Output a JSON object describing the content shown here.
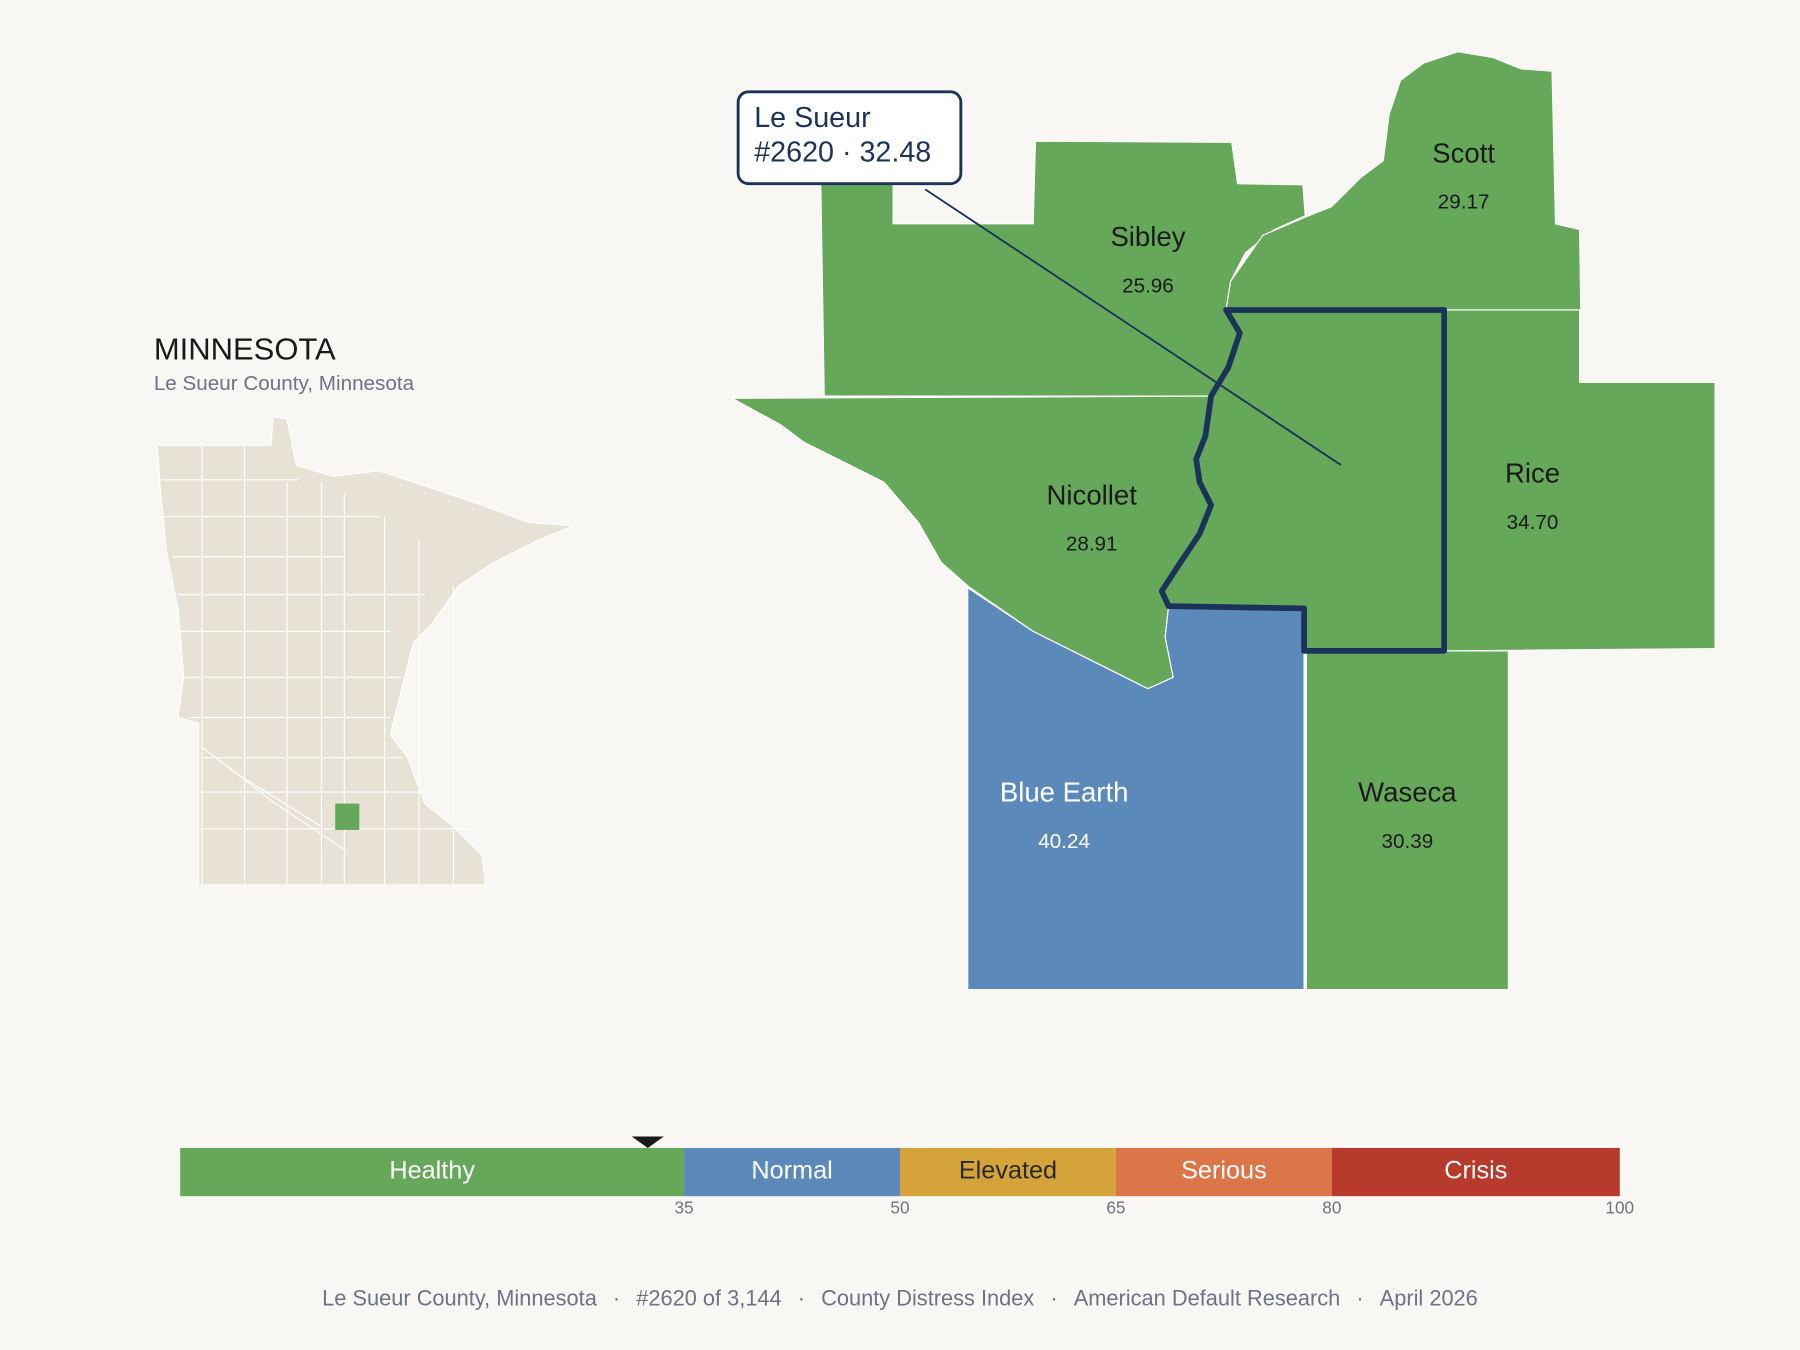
{
  "header": {
    "title": "MINNESOTA",
    "subtitle": "Le Sueur County, Minnesota"
  },
  "callout": {
    "name": "Le Sueur",
    "detail": "#2620 · 32.48"
  },
  "counties": [
    {
      "name": "Sibley",
      "value": "25.96",
      "color": "#66a85a"
    },
    {
      "name": "Scott",
      "value": "29.17",
      "color": "#66a85a"
    },
    {
      "name": "Rice",
      "value": "34.70",
      "color": "#66a85a"
    },
    {
      "name": "Nicollet",
      "value": "28.91",
      "color": "#66a85a"
    },
    {
      "name": "Blue Earth",
      "value": "40.24",
      "color": "#5b8aba"
    },
    {
      "name": "Waseca",
      "value": "30.39",
      "color": "#66a85a"
    },
    {
      "color": "#66a85a",
      "selected": true
    }
  ],
  "scale": {
    "range": [
      0,
      100
    ],
    "marker": 32.48,
    "segments": [
      {
        "label": "Healthy",
        "end": 35,
        "color": "#66a85a",
        "text_color": "#ffffff"
      },
      {
        "label": "Normal",
        "end": 50,
        "color": "#5b8aba",
        "text_color": "#ffffff"
      },
      {
        "label": "Elevated",
        "end": 65,
        "color": "#d4a43a",
        "text_color": "#2a2a2a"
      },
      {
        "label": "Serious",
        "end": 80,
        "color": "#dc7648",
        "text_color": "#ffffff"
      },
      {
        "label": "Crisis",
        "end": 100,
        "color": "#b83a2c",
        "text_color": "#ffffff"
      }
    ],
    "ticks": [
      35,
      50,
      65,
      80,
      100
    ]
  },
  "footer": {
    "separator": "·",
    "items": [
      "Le Sueur County, Minnesota",
      "#2620 of 3,144",
      "County Distress Index",
      "American Default Research",
      "April 2026"
    ]
  }
}
